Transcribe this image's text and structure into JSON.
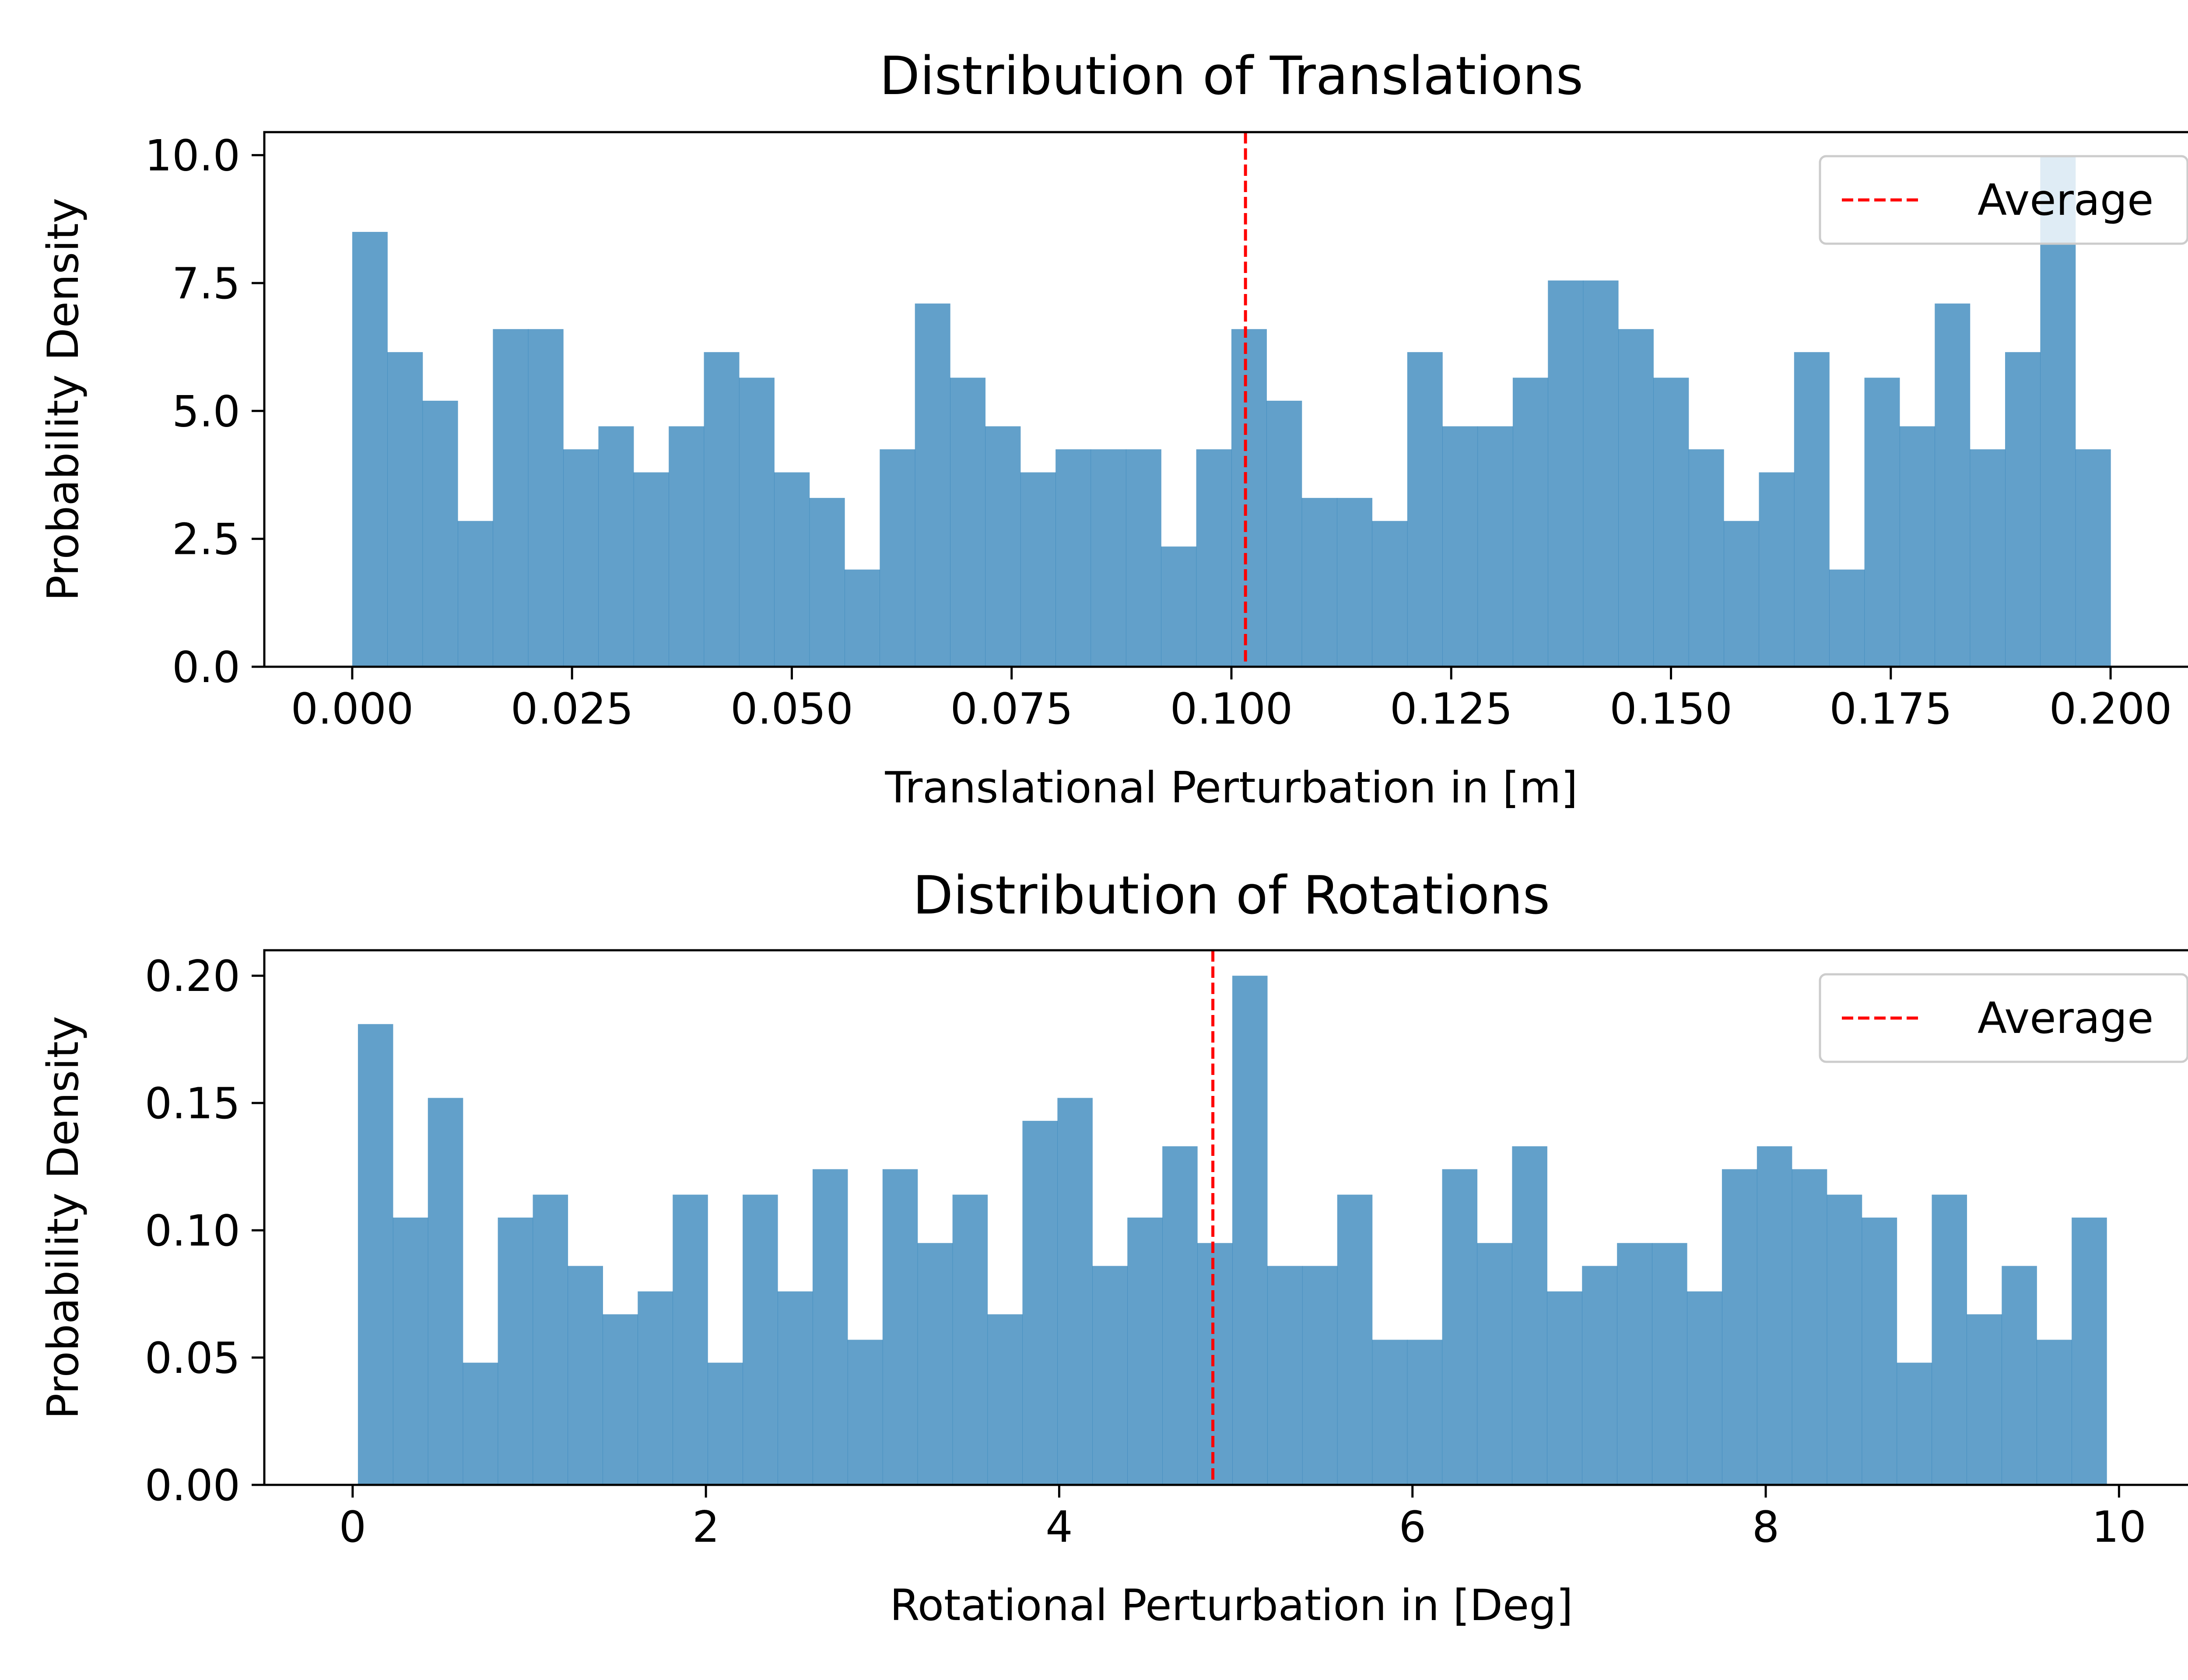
{
  "colors": {
    "bar": "#1f77b4",
    "bar_alpha": 0.7,
    "average_line": "#ff0000",
    "axes": "#000000",
    "background": "#ffffff"
  },
  "chart_data": [
    {
      "type": "bar",
      "subtype": "histogram",
      "title": "Distribution of Translations",
      "xlabel": "Translational Perturbation in [m]",
      "ylabel": "Probability Density",
      "xlim": [
        -0.01,
        0.21
      ],
      "ylim": [
        0,
        10.45
      ],
      "xticks": [
        0.0,
        0.025,
        0.05,
        0.075,
        0.1,
        0.125,
        0.15,
        0.175,
        0.2
      ],
      "xtick_labels": [
        "0.000",
        "0.025",
        "0.050",
        "0.075",
        "0.100",
        "0.125",
        "0.150",
        "0.175",
        "0.200"
      ],
      "yticks": [
        0.0,
        2.5,
        5.0,
        7.5,
        10.0
      ],
      "ytick_labels": [
        "0.0",
        "2.5",
        "5.0",
        "7.5",
        "10.0"
      ],
      "bin_edges_start": 0.0,
      "bin_width": 0.004,
      "values": [
        8.5,
        6.15,
        5.2,
        2.85,
        6.6,
        6.6,
        4.25,
        4.7,
        3.8,
        4.7,
        6.15,
        5.65,
        3.8,
        3.3,
        1.9,
        4.25,
        7.1,
        5.65,
        4.7,
        3.8,
        4.25,
        4.25,
        4.25,
        2.35,
        4.25,
        6.6,
        5.2,
        3.3,
        3.3,
        2.85,
        6.15,
        4.7,
        4.7,
        5.65,
        7.55,
        7.55,
        6.6,
        5.65,
        4.25,
        2.85,
        3.8,
        6.15,
        1.9,
        5.65,
        4.7,
        7.1,
        4.25,
        6.15,
        10.0,
        4.25
      ],
      "average": 0.1016,
      "legend": {
        "entries": [
          "Average"
        ],
        "position": "top-right"
      },
      "grid": false
    },
    {
      "type": "bar",
      "subtype": "histogram",
      "title": "Distribution of Rotations",
      "xlabel": "Rotational Perturbation in [Deg]",
      "ylabel": "Probability Density",
      "xlim": [
        -0.5,
        10.45
      ],
      "ylim": [
        0,
        0.21
      ],
      "xticks": [
        0,
        2,
        4,
        6,
        8,
        10
      ],
      "xtick_labels": [
        "0",
        "2",
        "4",
        "6",
        "8",
        "10"
      ],
      "yticks": [
        0.0,
        0.05,
        0.1,
        0.15,
        0.2
      ],
      "ytick_labels": [
        "0.00",
        "0.05",
        "0.10",
        "0.15",
        "0.20"
      ],
      "bin_edges_start": 0.03,
      "bin_width": 0.198,
      "values": [
        0.181,
        0.105,
        0.152,
        0.048,
        0.105,
        0.114,
        0.086,
        0.067,
        0.076,
        0.114,
        0.048,
        0.114,
        0.076,
        0.124,
        0.057,
        0.124,
        0.095,
        0.114,
        0.067,
        0.143,
        0.152,
        0.086,
        0.105,
        0.133,
        0.095,
        0.2,
        0.086,
        0.086,
        0.114,
        0.057,
        0.057,
        0.124,
        0.095,
        0.133,
        0.076,
        0.086,
        0.095,
        0.095,
        0.076,
        0.124,
        0.133,
        0.124,
        0.114,
        0.105,
        0.048,
        0.114,
        0.067,
        0.086,
        0.057,
        0.105
      ],
      "average": 4.87,
      "legend": {
        "entries": [
          "Average"
        ],
        "position": "top-right"
      },
      "grid": false
    }
  ]
}
